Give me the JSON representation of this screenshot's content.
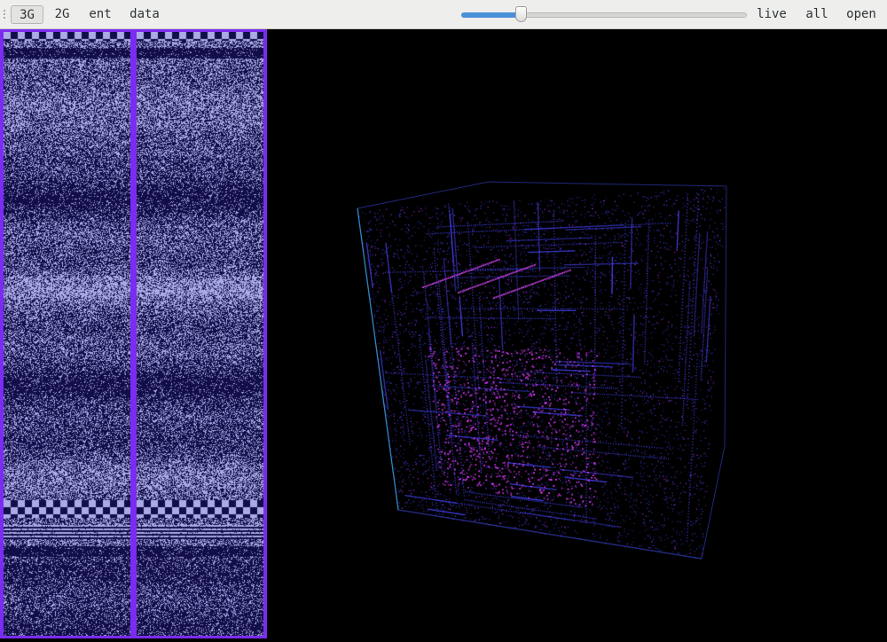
{
  "toolbar": {
    "items": [
      {
        "label": "3G",
        "active": true
      },
      {
        "label": "2G",
        "active": false
      },
      {
        "label": "ent",
        "active": false
      },
      {
        "label": "data",
        "active": false
      }
    ],
    "right_items": [
      "live",
      "all",
      "open"
    ],
    "slider_value": 0.21
  },
  "colors": {
    "accent": "#7b2cf0",
    "slider_fill": "#4a90d9",
    "panel_bg": "#000000"
  },
  "icons": {
    "grip": "grip-handle-icon"
  }
}
